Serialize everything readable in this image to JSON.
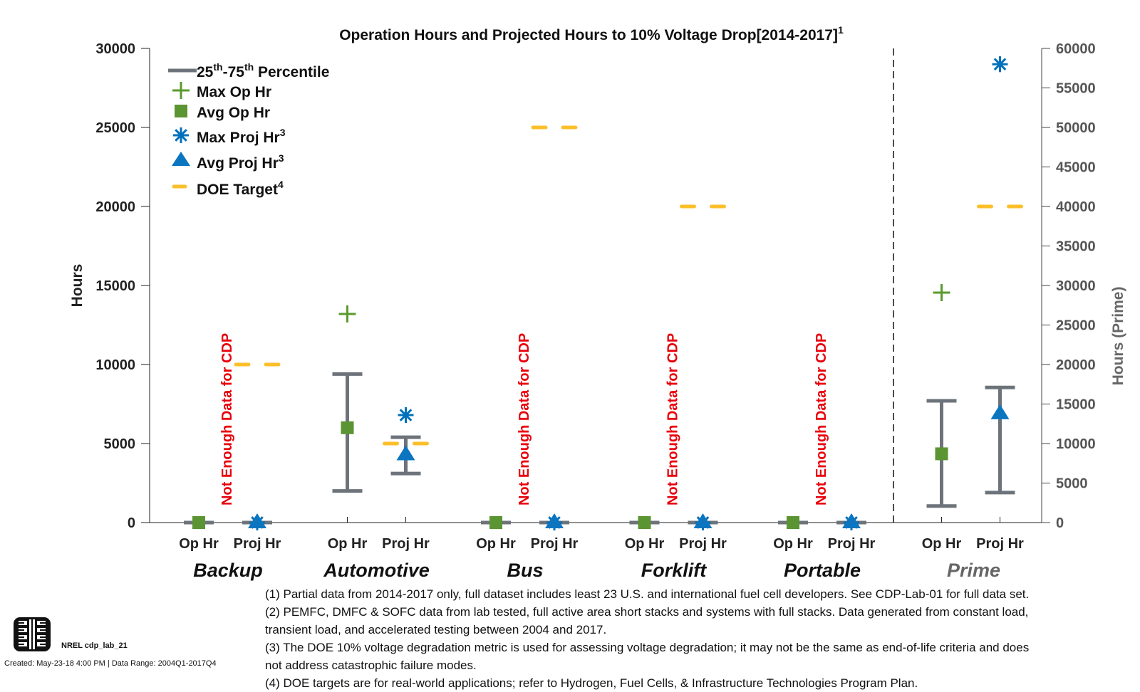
{
  "chart_data": {
    "type": "scatter",
    "title": "Operation Hours and Projected Hours to 10% Voltage Drop[2014-2017]",
    "title_superscript": "1",
    "ylabel": "Hours",
    "ylabel_right": "Hours (Prime)",
    "ylim": [
      0,
      30000
    ],
    "ylim_right": [
      0,
      60000
    ],
    "yticks": [
      0,
      5000,
      10000,
      15000,
      20000,
      25000,
      30000
    ],
    "yticks_right": [
      0,
      5000,
      10000,
      15000,
      20000,
      25000,
      30000,
      35000,
      40000,
      45000,
      50000,
      55000,
      60000
    ],
    "grid": false,
    "legend_position": "top-left",
    "legend": [
      {
        "key": "percentile",
        "label": "25th-75th Percentile",
        "parts": [
          "25",
          "th",
          "-75",
          "th",
          " Percentile"
        ]
      },
      {
        "key": "max_op",
        "label": "Max Op Hr",
        "sup": ""
      },
      {
        "key": "avg_op",
        "label": "Avg Op Hr",
        "sup": ""
      },
      {
        "key": "max_proj",
        "label": "Max Proj Hr",
        "sup": "3"
      },
      {
        "key": "avg_proj",
        "label": "Avg Proj Hr",
        "sup": "3"
      },
      {
        "key": "doe",
        "label": "DOE Target",
        "sup": "4"
      }
    ],
    "colors": {
      "percentile": "#6d737a",
      "max_op": "#5a9a2d",
      "avg_op": "#5b9432",
      "max_proj": "#0071bc",
      "avg_proj": "#0b75c0",
      "doe": "#fbbf2a",
      "note_red": "#e8000b",
      "prime_label": "#666666"
    },
    "sub_labels": [
      "Op Hr",
      "Proj Hr"
    ],
    "insufficient_label": "Not Enough Data for CDP",
    "categories": [
      {
        "name": "Backup",
        "axis": "left",
        "insufficient": true,
        "op": {
          "p25": 0,
          "p75": 0,
          "avg": 0,
          "max": null
        },
        "proj": {
          "p25": 0,
          "p75": 0,
          "avg": 0,
          "max": 0
        },
        "doe_target": 10000
      },
      {
        "name": "Automotive",
        "axis": "left",
        "insufficient": false,
        "op": {
          "p25": 2000,
          "p75": 9400,
          "avg": 6000,
          "max": 13200
        },
        "proj": {
          "p25": 3100,
          "p75": 5400,
          "avg": 4300,
          "max": 6800
        },
        "doe_target": 5000
      },
      {
        "name": "Bus",
        "axis": "left",
        "insufficient": true,
        "op": {
          "p25": 0,
          "p75": 0,
          "avg": 0,
          "max": null
        },
        "proj": {
          "p25": 0,
          "p75": 0,
          "avg": 0,
          "max": 0
        },
        "doe_target": 25000
      },
      {
        "name": "Forklift",
        "axis": "left",
        "insufficient": true,
        "op": {
          "p25": 0,
          "p75": 0,
          "avg": 0,
          "max": null
        },
        "proj": {
          "p25": 0,
          "p75": 0,
          "avg": 0,
          "max": 0
        },
        "doe_target": 20000
      },
      {
        "name": "Portable",
        "axis": "left",
        "insufficient": true,
        "op": {
          "p25": 0,
          "p75": 0,
          "avg": 0,
          "max": null
        },
        "proj": {
          "p25": 0,
          "p75": 0,
          "avg": 0,
          "max": 0
        },
        "doe_target": null
      },
      {
        "name": "Prime",
        "axis": "right",
        "insufficient": false,
        "op": {
          "p25": 2100,
          "p75": 15400,
          "avg": 8700,
          "max": 29100
        },
        "proj": {
          "p25": 3800,
          "p75": 17100,
          "avg": 13800,
          "max": 58000
        },
        "doe_target": 40000
      }
    ]
  },
  "notes": [
    "(1) Partial data from 2014-2017 only, full dataset includes least 23 U.S. and international fuel cell developers. See CDP-Lab-01 for full data set.",
    "(2) PEMFC, DMFC & SOFC data from lab tested, full active area short stacks and systems with full stacks. Data generated from constant load,",
    "transient load, and accelerated testing between 2004 and 2017.",
    "(3) The DOE 10% voltage degradation metric is used for assessing voltage degradation; it may not be the same as end-of-life criteria and does",
    "not address catastrophic failure modes.",
    "(4) DOE targets are for real-world applications; refer to Hydrogen, Fuel Cells, & Infrastructure Technologies Program Plan."
  ],
  "footer": {
    "id": "NREL cdp_lab_21",
    "created": "Created: May-23-18  4:00 PM | Data Range: 2004Q1-2017Q4"
  }
}
